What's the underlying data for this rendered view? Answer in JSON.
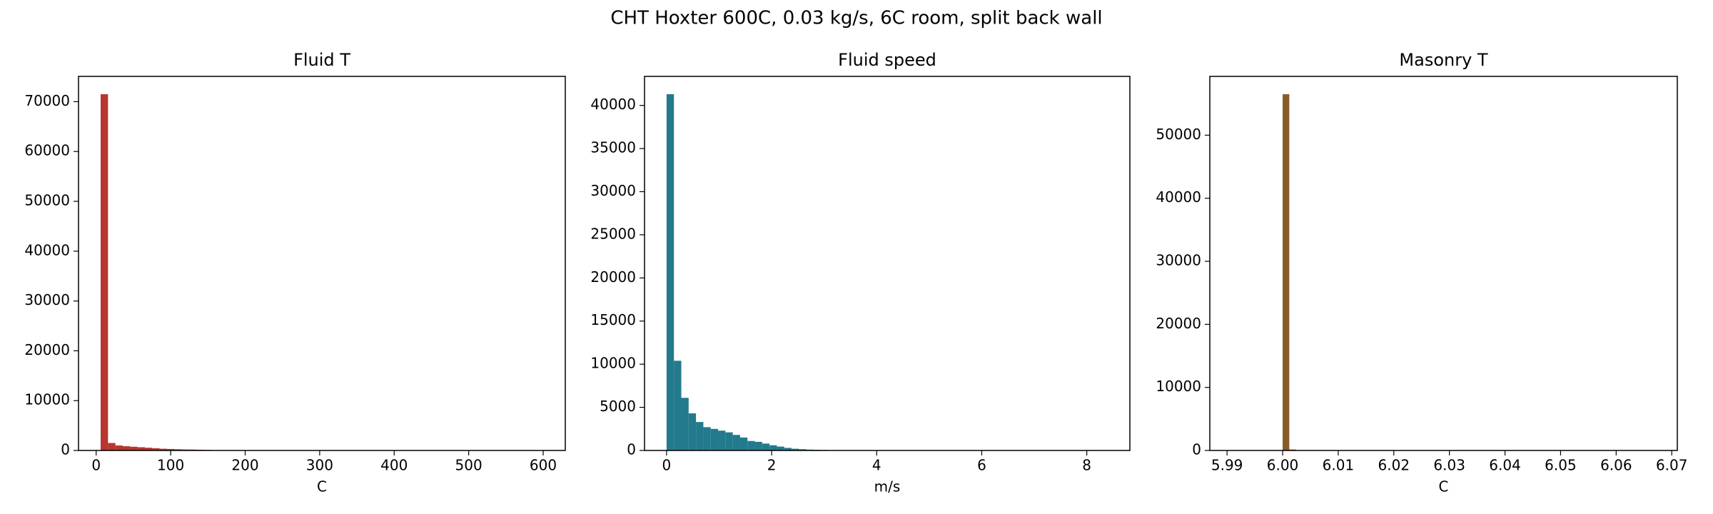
{
  "title": "CHT Hoxter 600C, 0.03 kg/s, 6C room, split back wall",
  "chart_data": [
    {
      "type": "histogram",
      "title": "Fluid T",
      "xlabel": "C",
      "color": "#b5372d",
      "bins": [
        6,
        15.9,
        25.8,
        35.7,
        45.6,
        55.5,
        65.4,
        75.3,
        85.2,
        95.1,
        105,
        114.9,
        124.8,
        134.7,
        144.6,
        154.5,
        164.4,
        174.3,
        184.2,
        194.1,
        204,
        213.9,
        223.8,
        233.7,
        243.6,
        253.5,
        263.4,
        273.3,
        283.2,
        293.1,
        303,
        312.9,
        322.8,
        332.7,
        342.6,
        352.5,
        362.4,
        372.3,
        382.2,
        392.1,
        402,
        411.9,
        421.8,
        431.7,
        441.6,
        451.5,
        461.4,
        471.3,
        481.2,
        491.1,
        501,
        510.9,
        520.8,
        530.7,
        540.6,
        550.5,
        560.4,
        570.3,
        580.2,
        590.1,
        600
      ],
      "values": [
        71500,
        1500,
        1000,
        850,
        750,
        650,
        550,
        450,
        350,
        300,
        250,
        200,
        180,
        150,
        120,
        0,
        0,
        0,
        0,
        0,
        0,
        0,
        0,
        0,
        0,
        0,
        0,
        0,
        0,
        0,
        0,
        0,
        0,
        0,
        0,
        0,
        0,
        0,
        0,
        0,
        0,
        0,
        0,
        0,
        0,
        0,
        0,
        0,
        0,
        0,
        0,
        0,
        0,
        0,
        0,
        0,
        0,
        0,
        0,
        0
      ],
      "xlim": [
        -23.7,
        629.7
      ],
      "xticks": [
        0,
        100,
        200,
        300,
        400,
        500,
        600
      ],
      "ylim": [
        0,
        75075
      ],
      "yticks": [
        0,
        10000,
        20000,
        30000,
        40000,
        50000,
        60000,
        70000
      ]
    },
    {
      "type": "histogram",
      "title": "Fluid speed",
      "xlabel": "m/s",
      "color": "#237a8c",
      "bins": [
        0,
        0.14,
        0.28,
        0.42,
        0.56,
        0.7,
        0.84,
        0.98,
        1.12,
        1.26,
        1.4,
        1.54,
        1.68,
        1.82,
        1.96,
        2.1,
        2.24,
        2.38,
        2.52,
        2.66,
        2.8,
        2.94,
        3.08,
        3.22,
        3.36,
        3.5,
        3.64,
        3.78,
        3.92,
        4.06,
        4.2,
        4.34,
        4.48,
        4.62,
        4.76,
        4.9,
        5.04,
        5.18,
        5.32,
        5.46,
        5.6,
        5.74,
        5.88,
        6.02,
        6.16,
        6.3,
        6.44,
        6.58,
        6.72,
        6.86,
        7,
        7.14,
        7.28,
        7.42,
        7.56,
        7.7,
        7.84,
        7.98,
        8.12,
        8.26,
        8.4
      ],
      "values": [
        41300,
        10400,
        6100,
        4300,
        3300,
        2700,
        2500,
        2300,
        2100,
        1800,
        1500,
        1100,
        1000,
        800,
        600,
        450,
        300,
        200,
        150,
        100,
        80,
        60,
        40,
        30,
        20,
        15,
        10,
        8,
        6,
        5,
        0,
        0,
        0,
        0,
        0,
        0,
        0,
        0,
        0,
        0,
        0,
        0,
        0,
        0,
        0,
        0,
        0,
        0,
        0,
        0,
        0,
        0,
        0,
        0,
        0,
        0,
        0,
        0,
        0,
        0
      ],
      "xlim": [
        -0.42,
        8.82
      ],
      "xticks": [
        0,
        2,
        4,
        6,
        8
      ],
      "ylim": [
        0,
        43365
      ],
      "yticks": [
        0,
        5000,
        10000,
        15000,
        20000,
        25000,
        30000,
        35000,
        40000
      ]
    },
    {
      "type": "histogram",
      "title": "Masonry T",
      "xlabel": "C",
      "color": "#8b5a2b",
      "bins": [
        6,
        6.0012,
        6.0024,
        6.0036
      ],
      "values": [
        56500,
        150,
        20
      ],
      "xlim": [
        5.9869,
        6.071
      ],
      "xticks": [
        5.99,
        {
          "value": 6,
          "label": "6.00"
        },
        6.01,
        6.02,
        6.03,
        6.04,
        6.05,
        6.06,
        6.07
      ],
      "ylim": [
        0,
        59325
      ],
      "yticks": [
        0,
        10000,
        20000,
        30000,
        40000,
        50000
      ]
    }
  ]
}
